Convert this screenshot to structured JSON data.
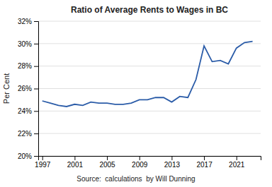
{
  "chart_data": {
    "type": "line",
    "title": "Ratio of Average Rents to Wages in BC",
    "y_label": "Per Cent",
    "annotation": "Source:  calculations  by Will Dunning",
    "x": [
      1997,
      1998,
      1999,
      2000,
      2001,
      2002,
      2003,
      2004,
      2005,
      2006,
      2007,
      2008,
      2009,
      2010,
      2011,
      2012,
      2013,
      2014,
      2015,
      2016,
      2017,
      2018,
      2019,
      2020,
      2021,
      2022,
      2023
    ],
    "values": [
      24.9,
      24.7,
      24.5,
      24.4,
      24.6,
      24.5,
      24.8,
      24.7,
      24.7,
      24.6,
      24.6,
      24.7,
      25.0,
      25.0,
      25.2,
      25.2,
      24.8,
      25.3,
      25.2,
      26.8,
      29.8,
      28.4,
      28.5,
      28.2,
      29.6,
      30.1,
      30.2
    ],
    "color": "#2B5CA8",
    "xlim": [
      1996.5,
      2024
    ],
    "ylim": [
      20,
      32
    ],
    "xticks": [
      1997,
      2001,
      2005,
      2009,
      2013,
      2017,
      2021
    ],
    "yticks": [
      {
        "value": 20,
        "label": "20%"
      },
      {
        "value": 22,
        "label": "22%"
      },
      {
        "value": 24,
        "label": "24%"
      },
      {
        "value": 26,
        "label": "26%"
      },
      {
        "value": 28,
        "label": "28%"
      },
      {
        "value": 30,
        "label": "30%"
      },
      {
        "value": 32,
        "label": "32%"
      }
    ],
    "grid": true
  }
}
